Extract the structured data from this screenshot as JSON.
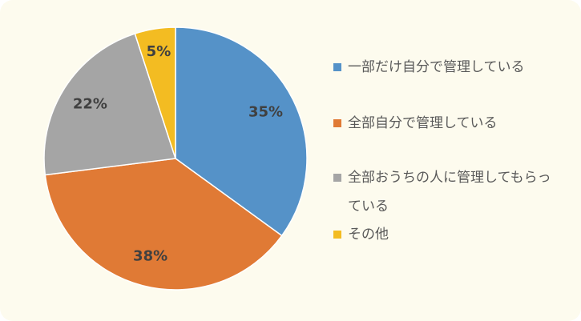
{
  "chart_data": {
    "type": "pie",
    "categories": [
      "一部だけ自分で管理している",
      "全部自分で管理している",
      "全部おうちの人に管理してもらっている",
      "その他"
    ],
    "values": [
      35,
      38,
      22,
      5
    ],
    "value_labels": [
      "35%",
      "38%",
      "22%",
      "5%"
    ],
    "colors": [
      "#5592c8",
      "#e07a35",
      "#a5a5a5",
      "#f3bc22"
    ]
  }
}
